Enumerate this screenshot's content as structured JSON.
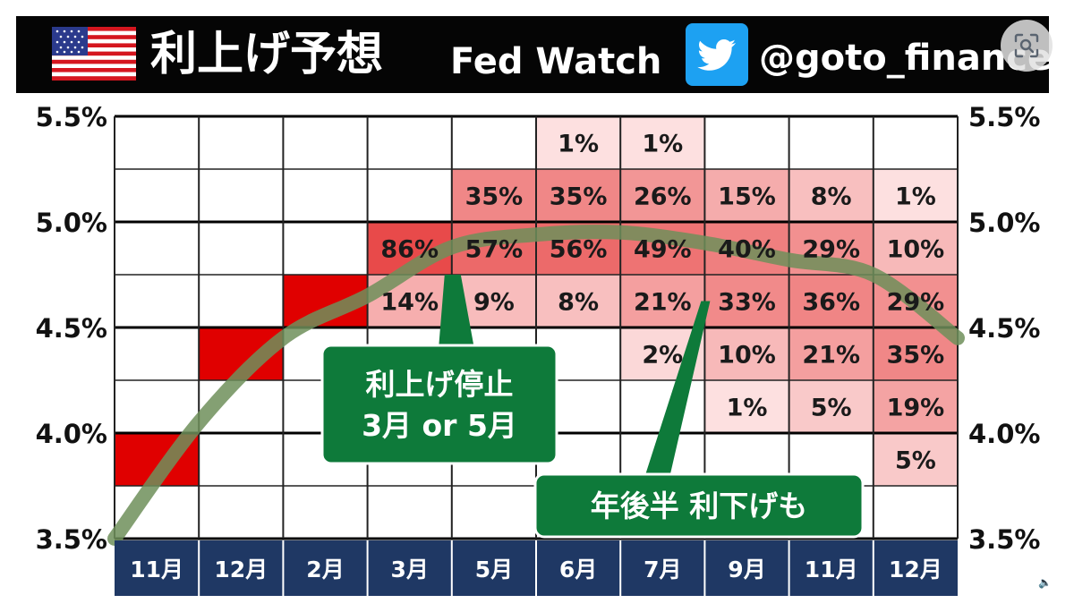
{
  "header": {
    "title": "利上げ予想",
    "subtitle": "Fed Watch",
    "handle": "@goto_finance",
    "flag_icon": "us-flag-icon",
    "twitter_icon": "twitter-bird-icon",
    "scan_icon": "image-search-icon"
  },
  "chart_data": {
    "type": "heatmap",
    "categories": [
      "11月",
      "12月",
      "2月",
      "3月",
      "5月",
      "6月",
      "7月",
      "9月",
      "11月",
      "12月"
    ],
    "y_ticks": [
      "5.5%",
      "5.0%",
      "4.5%",
      "4.0%",
      "3.5%"
    ],
    "y_tick_values": [
      5.5,
      5.0,
      4.5,
      4.0,
      3.5
    ],
    "ylim": [
      3.5,
      5.5
    ],
    "grid": true,
    "bands": [
      {
        "range": [
          5.25,
          5.5
        ],
        "values": [
          null,
          null,
          null,
          null,
          null,
          1,
          1,
          null,
          null,
          null
        ]
      },
      {
        "range": [
          5.0,
          5.25
        ],
        "values": [
          null,
          null,
          null,
          null,
          35,
          35,
          26,
          15,
          8,
          1
        ]
      },
      {
        "range": [
          4.75,
          5.0
        ],
        "values": [
          null,
          null,
          null,
          86,
          57,
          56,
          49,
          40,
          29,
          10
        ]
      },
      {
        "range": [
          4.5,
          4.75
        ],
        "values": [
          null,
          null,
          100,
          14,
          9,
          8,
          21,
          33,
          36,
          29
        ]
      },
      {
        "range": [
          4.25,
          4.5
        ],
        "values": [
          null,
          100,
          null,
          null,
          null,
          null,
          2,
          10,
          21,
          35
        ]
      },
      {
        "range": [
          4.0,
          4.25
        ],
        "values": [
          null,
          null,
          null,
          null,
          null,
          null,
          null,
          1,
          5,
          19
        ]
      },
      {
        "range": [
          3.75,
          4.0
        ],
        "values": [
          100,
          null,
          null,
          null,
          null,
          null,
          null,
          null,
          null,
          5
        ]
      },
      {
        "range": [
          3.5,
          3.75
        ],
        "values": [
          null,
          null,
          null,
          null,
          null,
          null,
          null,
          null,
          null,
          null
        ]
      }
    ],
    "trend_line": {
      "x": [
        -0.5,
        0.5,
        1.5,
        2.5,
        3.5,
        4.5,
        5.5,
        6.5,
        7.5,
        8.5,
        9.5
      ],
      "y": [
        3.5,
        4.05,
        4.45,
        4.65,
        4.88,
        4.94,
        4.95,
        4.9,
        4.82,
        4.75,
        4.45
      ],
      "color": "#6f8f5a"
    },
    "annotations": [
      {
        "lines": [
          "利上げ停止",
          "3月 or 5月"
        ],
        "pointer_x": 4.0,
        "pointer_y": 4.75
      },
      {
        "lines": [
          "年後半 利下げも"
        ],
        "pointer_x": 7.0,
        "pointer_y": 4.625
      }
    ],
    "colors": {
      "filled": "#e00000",
      "heat_low": "#fff2f2",
      "heat_high": "#e84a4a",
      "x_axis_bg": "#1f3864",
      "annotation_bg": "#0e7a3a"
    }
  }
}
